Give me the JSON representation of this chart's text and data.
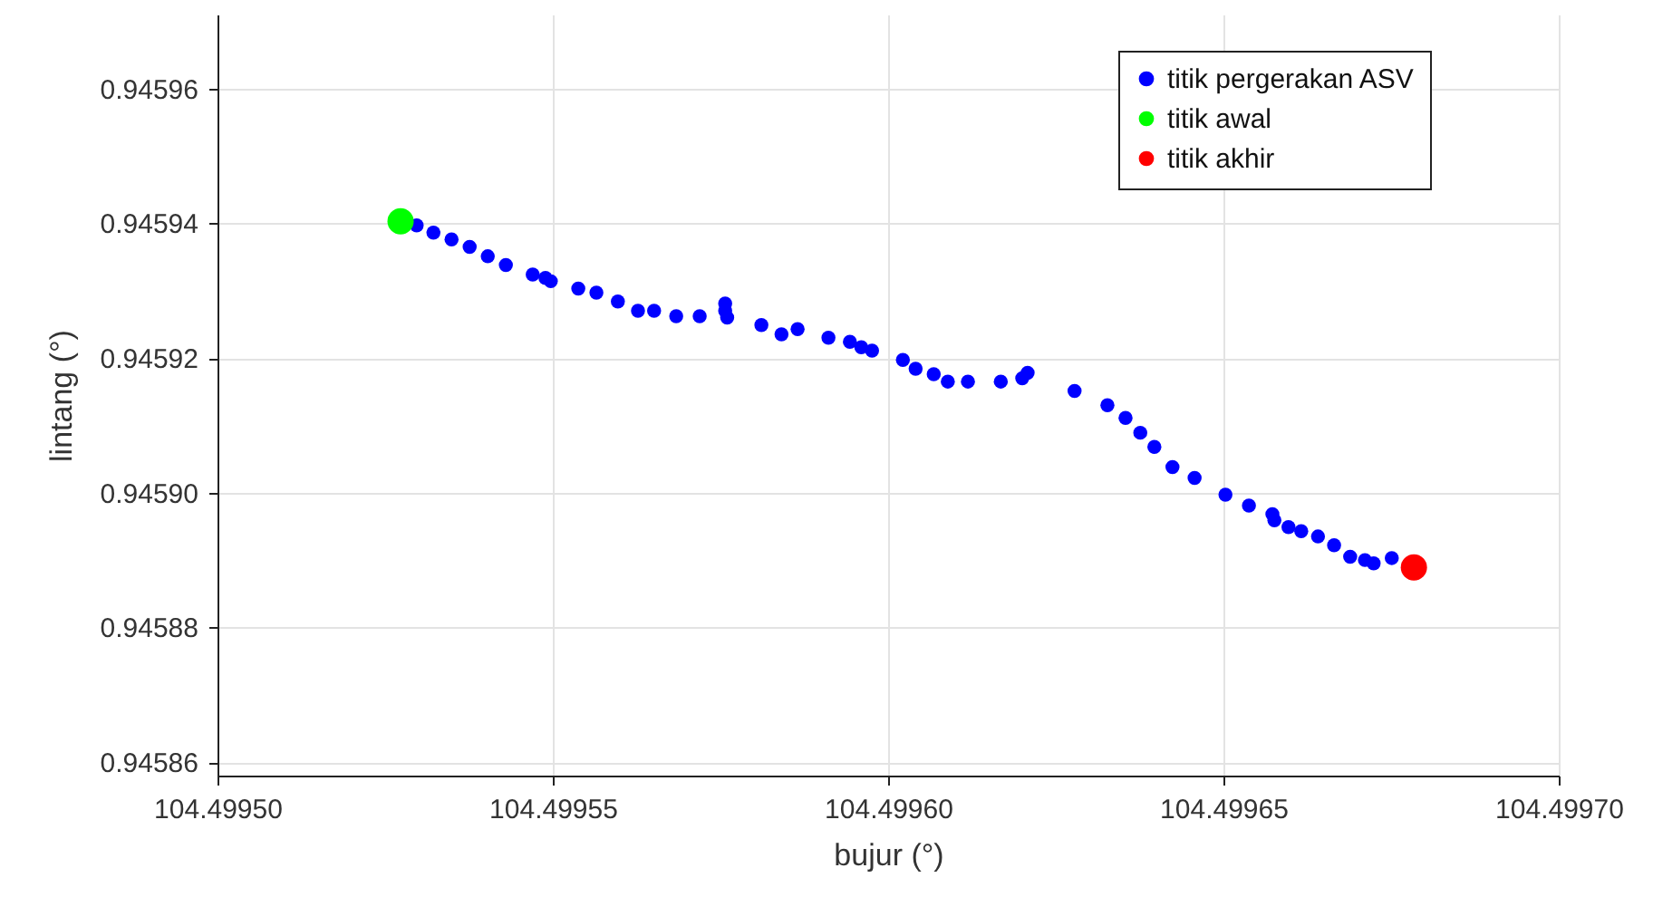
{
  "chart_data": {
    "type": "scatter",
    "xlabel": "bujur (°)",
    "ylabel": "lintang (°)",
    "xlim": [
      104.4995,
      104.4997
    ],
    "xticks": [
      {
        "value": 104.4995,
        "label": "104.49950"
      },
      {
        "value": 104.49955,
        "label": "104.49955"
      },
      {
        "value": 104.4996,
        "label": "104.49960"
      },
      {
        "value": 104.49965,
        "label": "104.49965"
      },
      {
        "value": 104.4997,
        "label": "104.49970"
      }
    ],
    "ylim": [
      0.945858,
      0.945971
    ],
    "yticks": [
      0.94586,
      0.94588,
      {
        "value": 0.9459,
        "label": "0.94590"
      },
      0.94592,
      0.94594,
      0.94596
    ],
    "grid": true,
    "legend": "top right",
    "marker": "circle",
    "series": [
      {
        "name": "titik pergerakan ASV",
        "color": "#0000ff",
        "x": [
          104.4995297,
          104.4995322,
          104.4995349,
          104.4995376,
          104.4995403,
          104.499543,
          104.499547,
          104.4995489,
          104.4995497,
          104.4995538,
          104.4995565,
          104.4995597,
          104.4995627,
          104.4995651,
          104.4995684,
          104.4995719,
          104.4995757,
          104.4995757,
          104.499576,
          104.4995811,
          104.4995841,
          104.4995865,
          104.4995911,
          104.4995943,
          104.499596,
          104.4995976,
          104.4996022,
          104.4996041,
          104.4996068,
          104.4996089,
          104.4996119,
          104.4996168,
          104.49962,
          104.4996208,
          104.4996278,
          104.4996327,
          104.4996354,
          104.4996376,
          104.4996397,
          104.4996424,
          104.4996457,
          104.4996503,
          104.4996538,
          104.4996573,
          104.4996576,
          104.4996597,
          104.4996616,
          104.4996641,
          104.4996665,
          104.4996689,
          104.4996711,
          104.4996724,
          104.4996751
        ],
        "values": [
          0.9459397,
          0.9459386,
          0.9459376,
          0.9459365,
          0.9459351,
          0.9459338,
          0.9459324,
          0.9459319,
          0.9459314,
          0.9459303,
          0.9459297,
          0.9459284,
          0.945927,
          0.945927,
          0.9459262,
          0.9459262,
          0.9459281,
          0.945927,
          0.945926,
          0.9459249,
          0.9459235,
          0.9459243,
          0.945923,
          0.9459224,
          0.9459216,
          0.9459211,
          0.9459197,
          0.9459184,
          0.9459176,
          0.9459165,
          0.9459165,
          0.9459165,
          0.945917,
          0.9459178,
          0.9459151,
          0.945913,
          0.9459111,
          0.9459089,
          0.9459068,
          0.9459038,
          0.9459022,
          0.9458997,
          0.9458981,
          0.9458968,
          0.9458959,
          0.9458949,
          0.9458943,
          0.9458935,
          0.9458922,
          0.9458905,
          0.94589,
          0.9458895,
          0.9458903
        ]
      },
      {
        "name": "titik awal",
        "color": "#00ff00",
        "x": [
          104.4995273
        ],
        "values": [
          0.9459403
        ]
      },
      {
        "name": "titik akhir",
        "color": "#ff0000",
        "x": [
          104.4996784
        ],
        "values": [
          0.9458889
        ]
      }
    ]
  }
}
